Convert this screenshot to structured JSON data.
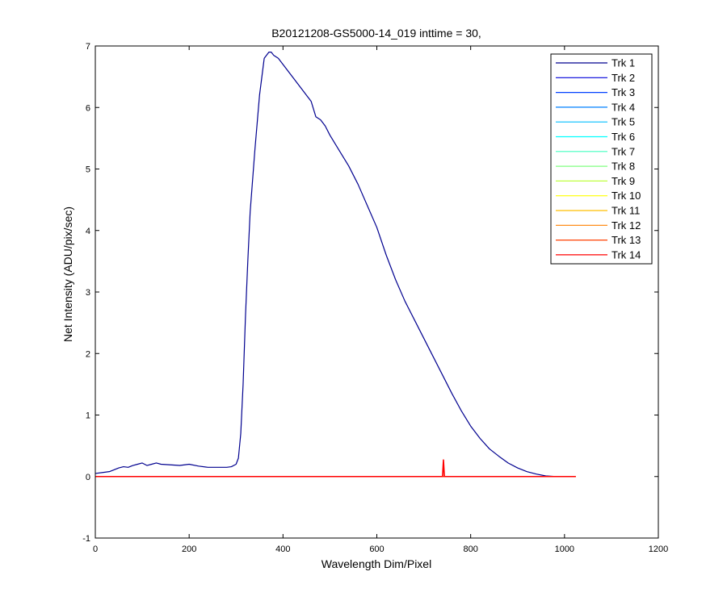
{
  "chart_data": {
    "type": "line",
    "title": "B20121208-GS5000-14_019 inttime = 30,",
    "xlabel": "Wavelength Dim/Pixel",
    "ylabel": "Net Intensity (ADU/pix/sec)",
    "xlim": [
      0,
      1200
    ],
    "ylim": [
      -1,
      7
    ],
    "xticks": [
      0,
      200,
      400,
      600,
      800,
      1000,
      1200
    ],
    "yticks": [
      -1,
      0,
      1,
      2,
      3,
      4,
      5,
      6,
      7
    ],
    "grid": false,
    "legend_position": "top-right",
    "series": [
      {
        "name": "Trk 1",
        "color": "#00008F",
        "x": [
          0,
          30,
          50,
          60,
          70,
          80,
          90,
          100,
          110,
          120,
          130,
          140,
          160,
          180,
          200,
          220,
          240,
          260,
          280,
          290,
          300,
          305,
          310,
          315,
          320,
          325,
          330,
          340,
          350,
          360,
          370,
          375,
          380,
          390,
          400,
          420,
          440,
          460,
          470,
          480,
          490,
          500,
          520,
          540,
          560,
          580,
          600,
          620,
          640,
          660,
          680,
          700,
          720,
          740,
          760,
          780,
          800,
          820,
          840,
          860,
          880,
          900,
          920,
          940,
          960,
          980,
          1000
        ],
        "y": [
          0.05,
          0.08,
          0.14,
          0.16,
          0.15,
          0.18,
          0.2,
          0.22,
          0.18,
          0.2,
          0.22,
          0.2,
          0.19,
          0.18,
          0.2,
          0.17,
          0.15,
          0.15,
          0.15,
          0.16,
          0.2,
          0.3,
          0.7,
          1.5,
          2.6,
          3.5,
          4.3,
          5.3,
          6.2,
          6.8,
          6.9,
          6.9,
          6.85,
          6.8,
          6.7,
          6.5,
          6.3,
          6.1,
          5.85,
          5.8,
          5.7,
          5.55,
          5.3,
          5.05,
          4.75,
          4.4,
          4.05,
          3.6,
          3.2,
          2.85,
          2.55,
          2.25,
          1.95,
          1.65,
          1.35,
          1.07,
          0.82,
          0.62,
          0.45,
          0.33,
          0.22,
          0.14,
          0.08,
          0.04,
          0.01,
          0.0,
          0.0
        ]
      },
      {
        "name": "Trk 2",
        "color": "#0000D9",
        "x": [
          0,
          1024
        ],
        "y": [
          0.0,
          0.0
        ]
      },
      {
        "name": "Trk 3",
        "color": "#0040FF",
        "x": [
          0,
          1024
        ],
        "y": [
          0.0,
          0.0
        ]
      },
      {
        "name": "Trk 4",
        "color": "#0080FF",
        "x": [
          0,
          1024
        ],
        "y": [
          0.0,
          0.0
        ]
      },
      {
        "name": "Trk 5",
        "color": "#00BFFF",
        "x": [
          0,
          1024
        ],
        "y": [
          0.0,
          0.0
        ]
      },
      {
        "name": "Trk 6",
        "color": "#00FFFF",
        "x": [
          0,
          1024
        ],
        "y": [
          0.0,
          0.0
        ]
      },
      {
        "name": "Trk 7",
        "color": "#40FFBF",
        "x": [
          0,
          1024
        ],
        "y": [
          0.0,
          0.0
        ]
      },
      {
        "name": "Trk 8",
        "color": "#80FF80",
        "x": [
          0,
          1024
        ],
        "y": [
          0.0,
          0.0
        ]
      },
      {
        "name": "Trk 9",
        "color": "#BFFF40",
        "x": [
          0,
          1024
        ],
        "y": [
          0.0,
          0.0
        ]
      },
      {
        "name": "Trk 10",
        "color": "#FFFF00",
        "x": [
          0,
          1024
        ],
        "y": [
          0.0,
          0.0
        ]
      },
      {
        "name": "Trk 11",
        "color": "#FFBF00",
        "x": [
          0,
          1024
        ],
        "y": [
          0.0,
          0.0
        ]
      },
      {
        "name": "Trk 12",
        "color": "#FF8000",
        "x": [
          0,
          1024
        ],
        "y": [
          0.0,
          0.0
        ]
      },
      {
        "name": "Trk 13",
        "color": "#FF4000",
        "x": [
          0,
          1024
        ],
        "y": [
          0.0,
          0.0
        ]
      },
      {
        "name": "Trk 14",
        "color": "#FF0000",
        "x": [
          0,
          740,
          742,
          744,
          1024
        ],
        "y": [
          0.0,
          0.0,
          0.27,
          0.0,
          0.0
        ]
      }
    ]
  }
}
